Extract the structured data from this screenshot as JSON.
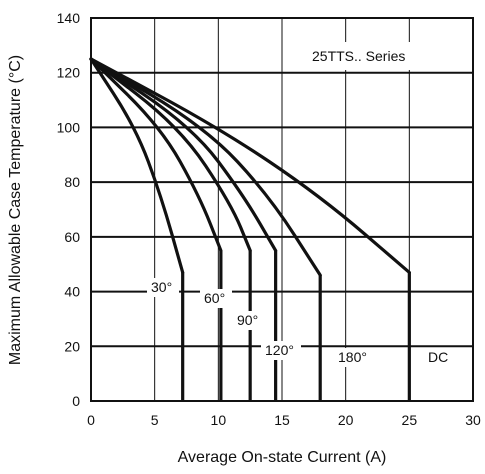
{
  "chart_data": {
    "type": "line",
    "xlabel": "Average On-state Current (A)",
    "ylabel": "Maximum Allowable Case Temperature (°C)",
    "xlim": [
      0,
      30
    ],
    "ylim": [
      0,
      140
    ],
    "x_ticks": [
      0,
      5,
      10,
      15,
      20,
      25,
      30
    ],
    "y_ticks": [
      0,
      20,
      40,
      60,
      80,
      100,
      120,
      140
    ],
    "grid": true,
    "series_name_label": "25TTS.. Series",
    "series": [
      {
        "name": "30°",
        "points": [
          [
            0,
            125
          ],
          [
            3.5,
            100
          ],
          [
            5.5,
            75
          ],
          [
            7.2,
            47
          ]
        ],
        "drop_x": 7.2
      },
      {
        "name": "60°",
        "points": [
          [
            0,
            125
          ],
          [
            5.5,
            100
          ],
          [
            8.5,
            75
          ],
          [
            10.2,
            55
          ]
        ],
        "drop_x": 10.2
      },
      {
        "name": "90°",
        "points": [
          [
            0,
            125
          ],
          [
            7,
            100
          ],
          [
            11,
            72
          ],
          [
            12.5,
            55
          ]
        ],
        "drop_x": 12.5
      },
      {
        "name": "120°",
        "points": [
          [
            0,
            125
          ],
          [
            8,
            100
          ],
          [
            12,
            75
          ],
          [
            14.5,
            55
          ]
        ],
        "drop_x": 14.5
      },
      {
        "name": "180°",
        "points": [
          [
            0,
            125
          ],
          [
            9,
            100
          ],
          [
            14,
            75
          ],
          [
            18,
            46
          ]
        ],
        "drop_x": 18
      },
      {
        "name": "DC",
        "points": [
          [
            0,
            125
          ],
          [
            10,
            100
          ],
          [
            18,
            75
          ],
          [
            25,
            47
          ]
        ],
        "drop_x": 25
      }
    ]
  }
}
